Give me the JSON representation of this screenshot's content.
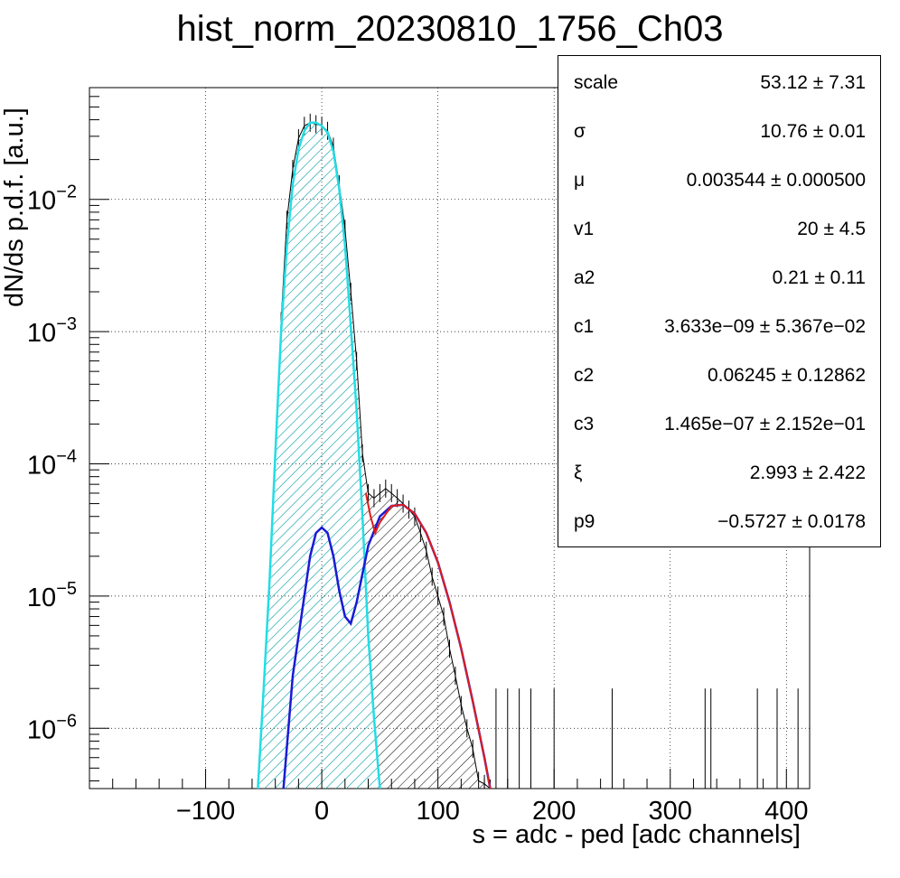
{
  "window_title": "hist_norm_20230810_1756_Ch03",
  "chart_data": {
    "type": "histogram",
    "title": "hist_norm_20230810_1756_Ch03",
    "xlabel": "s = adc - ped [adc channels]",
    "ylabel": "dN/ds p.d.f. [a.u.]",
    "xlim": [
      -200,
      420
    ],
    "ylim": [
      3.5e-07,
      0.07
    ],
    "yscale": "log",
    "grid": true,
    "x_ticks": [
      -100,
      0,
      100,
      200,
      300,
      400
    ],
    "x_tick_labels": [
      "−100",
      "0",
      "100",
      "200",
      "300",
      "400"
    ],
    "y_ticks": [
      1e-06,
      1e-05,
      0.0001,
      0.001,
      0.01
    ],
    "y_tick_labels": [
      {
        "base": "10",
        "exp": "−6"
      },
      {
        "base": "10",
        "exp": "−5"
      },
      {
        "base": "10",
        "exp": "−4"
      },
      {
        "base": "10",
        "exp": "−3"
      },
      {
        "base": "10",
        "exp": "−2"
      }
    ],
    "series": [
      {
        "style": "histogram-hatched-black",
        "color": "#000000",
        "x": [
          -55,
          -50,
          -45,
          -40,
          -35,
          -30,
          -25,
          -20,
          -15,
          -10,
          -5,
          0,
          5,
          10,
          15,
          20,
          25,
          30,
          35,
          40,
          45,
          50,
          55,
          60,
          65,
          70,
          75,
          80,
          85,
          90,
          95,
          100,
          105,
          110,
          115,
          120,
          125,
          130,
          135,
          140,
          145
        ],
        "y": [
          3.5e-07,
          2e-06,
          1.2e-05,
          0.00011,
          0.0012,
          0.007,
          0.017,
          0.029,
          0.036,
          0.038,
          0.037,
          0.036,
          0.033,
          0.025,
          0.013,
          0.006,
          0.002,
          0.0006,
          0.00012,
          6e-05,
          5.5e-05,
          6e-05,
          6.5e-05,
          6e-05,
          5.5e-05,
          5e-05,
          4.5e-05,
          4e-05,
          3e-05,
          2.2e-05,
          1.4e-05,
          1e-05,
          7e-06,
          4e-06,
          2.5e-06,
          1.5e-06,
          1e-06,
          7e-07,
          4e-07,
          3.8e-07,
          3.5e-07
        ]
      },
      {
        "style": "curve-cyan-hatched",
        "color": "#22dde6",
        "x": [
          -55,
          -50,
          -45,
          -40,
          -35,
          -30,
          -25,
          -20,
          -15,
          -10,
          -5,
          0,
          5,
          10,
          15,
          20,
          25,
          30,
          35,
          40,
          45,
          50
        ],
        "y": [
          3.5e-07,
          2e-06,
          1.3e-05,
          0.00012,
          0.001,
          0.0045,
          0.013,
          0.024,
          0.033,
          0.038,
          0.038,
          0.036,
          0.032,
          0.023,
          0.012,
          0.0045,
          0.0011,
          0.00025,
          4e-05,
          5e-06,
          1.2e-06,
          3.5e-07
        ]
      },
      {
        "style": "curve-blue",
        "color": "#1a1ad6",
        "x": [
          -33,
          -25,
          -15,
          -10,
          -5,
          0,
          5,
          10,
          15,
          20,
          25,
          30,
          40,
          50,
          60,
          70,
          80,
          90,
          100,
          110,
          120,
          130,
          140,
          145
        ],
        "y": [
          3.5e-07,
          2.5e-06,
          1e-05,
          2e-05,
          3e-05,
          3.3e-05,
          3e-05,
          2e-05,
          1.1e-05,
          7e-06,
          6.2e-06,
          9e-06,
          2.4e-05,
          4e-05,
          4.8e-05,
          4.9e-05,
          4.2e-05,
          3e-05,
          1.8e-05,
          9e-06,
          4e-06,
          1.6e-06,
          6e-07,
          3.5e-07
        ]
      },
      {
        "style": "curve-red",
        "color": "#e01b1b",
        "x": [
          38,
          42,
          46,
          50,
          60,
          70,
          80,
          90,
          100,
          110,
          120,
          130,
          140,
          145
        ],
        "y": [
          6e-05,
          4e-05,
          3e-05,
          3.6e-05,
          4.8e-05,
          4.9e-05,
          4.2e-05,
          3e-05,
          1.8e-05,
          9e-06,
          4e-06,
          1.6e-06,
          6e-07,
          3.5e-07
        ]
      }
    ],
    "upper_error_bars_x": [
      150,
      160,
      170,
      180,
      200,
      250,
      330,
      335,
      375,
      392,
      410
    ]
  },
  "stats_box": {
    "rows": [
      {
        "name": "scale",
        "value": "53.12 ± 7.31"
      },
      {
        "name": "σ",
        "value": "10.76 ± 0.01"
      },
      {
        "name": "μ",
        "value": "0.003544 ± 0.000500"
      },
      {
        "name": "v1",
        "value": "20 ± 4.5"
      },
      {
        "name": "a2",
        "value": "0.21 ± 0.11"
      },
      {
        "name": "c1",
        "value": "3.633e−09 ± 5.367e−02"
      },
      {
        "name": "c2",
        "value": "0.06245 ± 0.12862"
      },
      {
        "name": "c3",
        "value": "1.465e−07 ± 2.152e−01"
      },
      {
        "name": "ξ",
        "value": "2.993 ± 2.422"
      },
      {
        "name": "p9",
        "value": "−0.5727 ± 0.0178"
      }
    ]
  }
}
